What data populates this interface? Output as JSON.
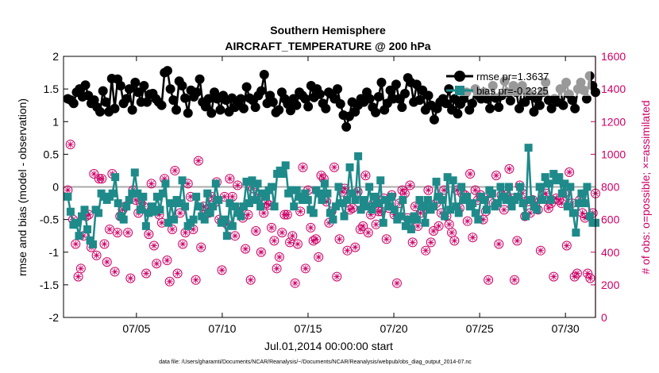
{
  "chart_data": {
    "type": "line",
    "title": "Southern Hemisphere",
    "subtitle": "AIRCRAFT_TEMPERATURE @ 200 hPa",
    "xlabel": "Jul.01,2014 00:00:00 start",
    "ylabel_left": "rmse and bias (model - observation)",
    "ylabel_right": "# of obs: o=possible; ×=assimilated",
    "ylim_left": [
      -2,
      2
    ],
    "ylim_right": [
      0,
      1600
    ],
    "xlim": [
      0.75,
      31.75
    ],
    "left_ticks": [
      "2",
      "1.5",
      "1",
      "0.5",
      "0",
      "-0.5",
      "-1",
      "-1.5",
      "-2"
    ],
    "left_tick_values": [
      2,
      1.5,
      1,
      0.5,
      0,
      -0.5,
      -1,
      -1.5,
      -2
    ],
    "right_ticks": [
      "1600",
      "1400",
      "1200",
      "1000",
      "800",
      "600",
      "400",
      "200",
      "0"
    ],
    "right_tick_values": [
      1600,
      1400,
      1200,
      1000,
      800,
      600,
      400,
      200,
      0
    ],
    "x_ticks": [
      "07/05",
      "07/10",
      "07/15",
      "07/20",
      "07/25",
      "07/30"
    ],
    "x_tick_values": [
      5,
      10,
      15,
      20,
      25,
      30
    ],
    "legend": {
      "rmse_label": "rmse pr=1.3637",
      "bias_label": "bias pr=-0.2325"
    },
    "zero_line": 0,
    "footnote": "data file: /Users/gharamti/Documents/NCAR/Reanalysis/~/Documents/NCAR/Reanalysis/webpub/obs_diag_output_2014-07.nc",
    "colors": {
      "rmse": "#000000",
      "bias": "#1f8a8a",
      "obs": "#cc0066",
      "zero": "#aaaaaa"
    },
    "series": [
      {
        "name": "rmse",
        "axis": "left",
        "values": [
          1.35,
          1.33,
          1.28,
          1.45,
          1.5,
          1.38,
          1.56,
          1.4,
          1.28,
          1.33,
          1.22,
          1.15,
          1.47,
          1.3,
          1.15,
          1.66,
          1.2,
          1.65,
          1.55,
          1.28,
          1.35,
          1.5,
          1.18,
          1.6,
          1.45,
          1.3,
          1.55,
          1.3,
          1.42,
          1.43,
          1.35,
          1.3,
          1.25,
          1.75,
          1.78,
          1.5,
          1.33,
          1.18,
          1.62,
          1.55,
          1.36,
          1.13,
          1.48,
          1.38,
          1.45,
          1.65,
          1.3,
          1.23,
          1.35,
          1.13,
          1.45,
          1.35,
          1.18,
          1.4,
          1.33,
          1.15,
          1.36,
          1.22,
          1.28,
          1.35,
          1.2,
          1.53,
          1.36,
          1.33,
          1.22,
          1.4,
          1.47,
          1.72,
          1.28,
          1.4,
          1.3,
          1.14,
          1.18,
          1.45,
          1.35,
          1.27,
          1.17,
          1.35,
          1.25,
          1.45,
          1.4,
          1.35,
          1.23,
          1.55,
          1.37,
          1.5,
          1.42,
          1.28,
          1.2,
          1.45,
          1.42,
          1.35,
          1.5,
          1.27,
          1.1,
          0.92,
          1.08,
          1.3,
          1.15,
          1.25,
          1.35,
          1.3,
          1.45,
          1.35,
          1.22,
          1.14,
          1.38,
          1.6,
          1.18,
          1.28,
          1.48,
          1.35,
          1.57,
          1.35,
          1.22,
          1.43,
          1.67,
          1.6,
          1.3,
          1.57,
          1.33,
          1.48,
          1.18,
          1.4,
          1.25,
          1.03,
          1.2,
          1.3,
          1.35,
          1.28,
          1.5,
          1.18,
          1.35,
          1.12,
          1.27,
          1.35,
          1.45,
          1.18,
          1.28,
          1.5,
          1.4,
          1.35,
          1.45,
          1.35,
          1.2,
          1.55,
          1.36,
          1.22,
          1.4,
          1.62,
          1.45,
          1.32,
          1.55,
          1.45,
          1.2,
          1.55,
          1.3,
          1.45,
          1.4,
          1.15,
          1.35,
          1.25,
          1.45,
          1.6,
          1.33,
          1.2,
          1.35,
          1.3,
          1.5,
          1.25,
          1.6,
          1.42,
          1.33,
          1.2,
          1.5,
          1.6,
          1.48,
          1.35,
          1.7,
          1.55,
          1.45
        ]
      },
      {
        "name": "bias",
        "axis": "left",
        "values": [
          -0.15,
          -0.38,
          -0.58,
          -0.55,
          -0.75,
          -0.45,
          -0.35,
          -0.65,
          -0.82,
          -0.88,
          -0.35,
          -0.4,
          -0.1,
          -0.15,
          -0.2,
          -0.15,
          -0.1,
          0.15,
          -0.25,
          -0.45,
          -0.5,
          -0.3,
          -0.2,
          -0.1,
          0.22,
          -0.1,
          -0.35,
          -0.15,
          -0.6,
          -0.4,
          -0.3,
          -0.38,
          -0.15,
          -0.35,
          -0.1,
          0.05,
          -0.55,
          -0.25,
          -0.5,
          -0.2,
          -0.25,
          0.1,
          -0.3,
          -0.6,
          -0.55,
          -0.5,
          -0.15,
          -0.3,
          -0.45,
          -0.5,
          -0.1,
          -0.4,
          -0.3,
          0.05,
          -0.2,
          -0.55,
          -0.5,
          -0.75,
          -0.25,
          -0.6,
          -0.3,
          -0.4,
          -0.45,
          -0.3,
          0.08,
          -0.25,
          0.1,
          -0.2,
          0.05,
          -0.3,
          -0.1,
          -0.15,
          -0.05,
          0.0,
          -0.3,
          0.2,
          0.25,
          0.2,
          0.33,
          -0.1,
          -0.05,
          -0.3,
          -0.05,
          -0.15,
          -0.2,
          -0.1,
          -0.2,
          -0.35,
          -0.4,
          -0.05,
          -0.1,
          -0.2,
          0.05,
          -0.1,
          -0.4,
          -0.5,
          -0.3,
          0.0,
          -0.25,
          -0.45,
          -0.2,
          0.3,
          -0.1,
          -0.2,
          0.47,
          -0.35,
          -0.2,
          -0.3,
          0.0,
          -0.35,
          -0.15,
          -0.25,
          0.1,
          -0.55,
          -0.2,
          -0.3,
          -0.15,
          -0.35,
          -0.5,
          -0.45,
          -0.2,
          -0.6,
          -0.5,
          -0.65,
          -0.45,
          -0.5,
          -0.2,
          -0.3,
          -0.55,
          -0.2,
          -0.35,
          -0.3,
          0.08,
          -0.15,
          -0.2,
          -0.45,
          0.15,
          -0.35,
          0.1,
          -0.3,
          -0.4,
          0.0,
          -0.2,
          -0.15,
          -0.3,
          -0.25,
          -0.4,
          -0.5,
          -0.15,
          -0.2,
          -0.35,
          -0.05,
          -0.1,
          -0.3,
          -0.25,
          0.0,
          -0.15,
          -0.2,
          0.0,
          -0.3,
          -0.2,
          -0.15,
          0.0,
          -0.25,
          -0.45,
          0.6,
          -0.2,
          -0.3,
          -0.35,
          0.0,
          -0.2,
          0.15,
          0.05,
          -0.2,
          0.2,
          0.1,
          0.15,
          -0.1,
          0.05,
          -0.3,
          0.0,
          -0.4,
          -0.7,
          -0.25,
          -0.1,
          -0.25,
          0.0,
          -0.45,
          -0.55,
          -0.55
        ]
      },
      {
        "name": "possible",
        "axis": "right",
        "values": [
          780,
          1060,
          600,
          450,
          250,
          300,
          500,
          620,
          630,
          430,
          880,
          380,
          850,
          850,
          450,
          340,
          540,
          880,
          280,
          520,
          620,
          660,
          680,
          520,
          240,
          780,
          720,
          640,
          700,
          680,
          270,
          510,
          820,
          440,
          330,
          630,
          580,
          850,
          350,
          220,
          540,
          900,
          270,
          640,
          450,
          520,
          820,
          740,
          540,
          230,
          960,
          430,
          680,
          660,
          640,
          740,
          700,
          830,
          600,
          290,
          740,
          570,
          850,
          740,
          500,
          810,
          670,
          610,
          420,
          630,
          230,
          790,
          530,
          750,
          400,
          640,
          700,
          690,
          550,
          470,
          300,
          370,
          520,
          630,
          630,
          460,
          500,
          210,
          450,
          650,
          920,
          300,
          780,
          550,
          470,
          480,
          370,
          870,
          850,
          710,
          580,
          650,
          920,
          250,
          480,
          770,
          790,
          410,
          660,
          670,
          430,
          770,
          540,
          560,
          870,
          520,
          630,
          700,
          570,
          650,
          650,
          730,
          480,
          670,
          750,
          630,
          210,
          700,
          780,
          760,
          610,
          810,
          460,
          680,
          560,
          640,
          680,
          410,
          780,
          460,
          530,
          700,
          560,
          640,
          780,
          620,
          570,
          520,
          470,
          780,
          670,
          760,
          750,
          590,
          880,
          490,
          780,
          720,
          750,
          600,
          650,
          230,
          760,
          700,
          870,
          450,
          750,
          660,
          750,
          910,
          730,
          230,
          470,
          810,
          760,
          620,
          710,
          640,
          720,
          700,
          660,
          410,
          730,
          760,
          670,
          700,
          250,
          730,
          720,
          700,
          760,
          440,
          890,
          700,
          250,
          270,
          720,
          640,
          610,
          270,
          240,
          640,
          760
        ]
      }
    ]
  }
}
